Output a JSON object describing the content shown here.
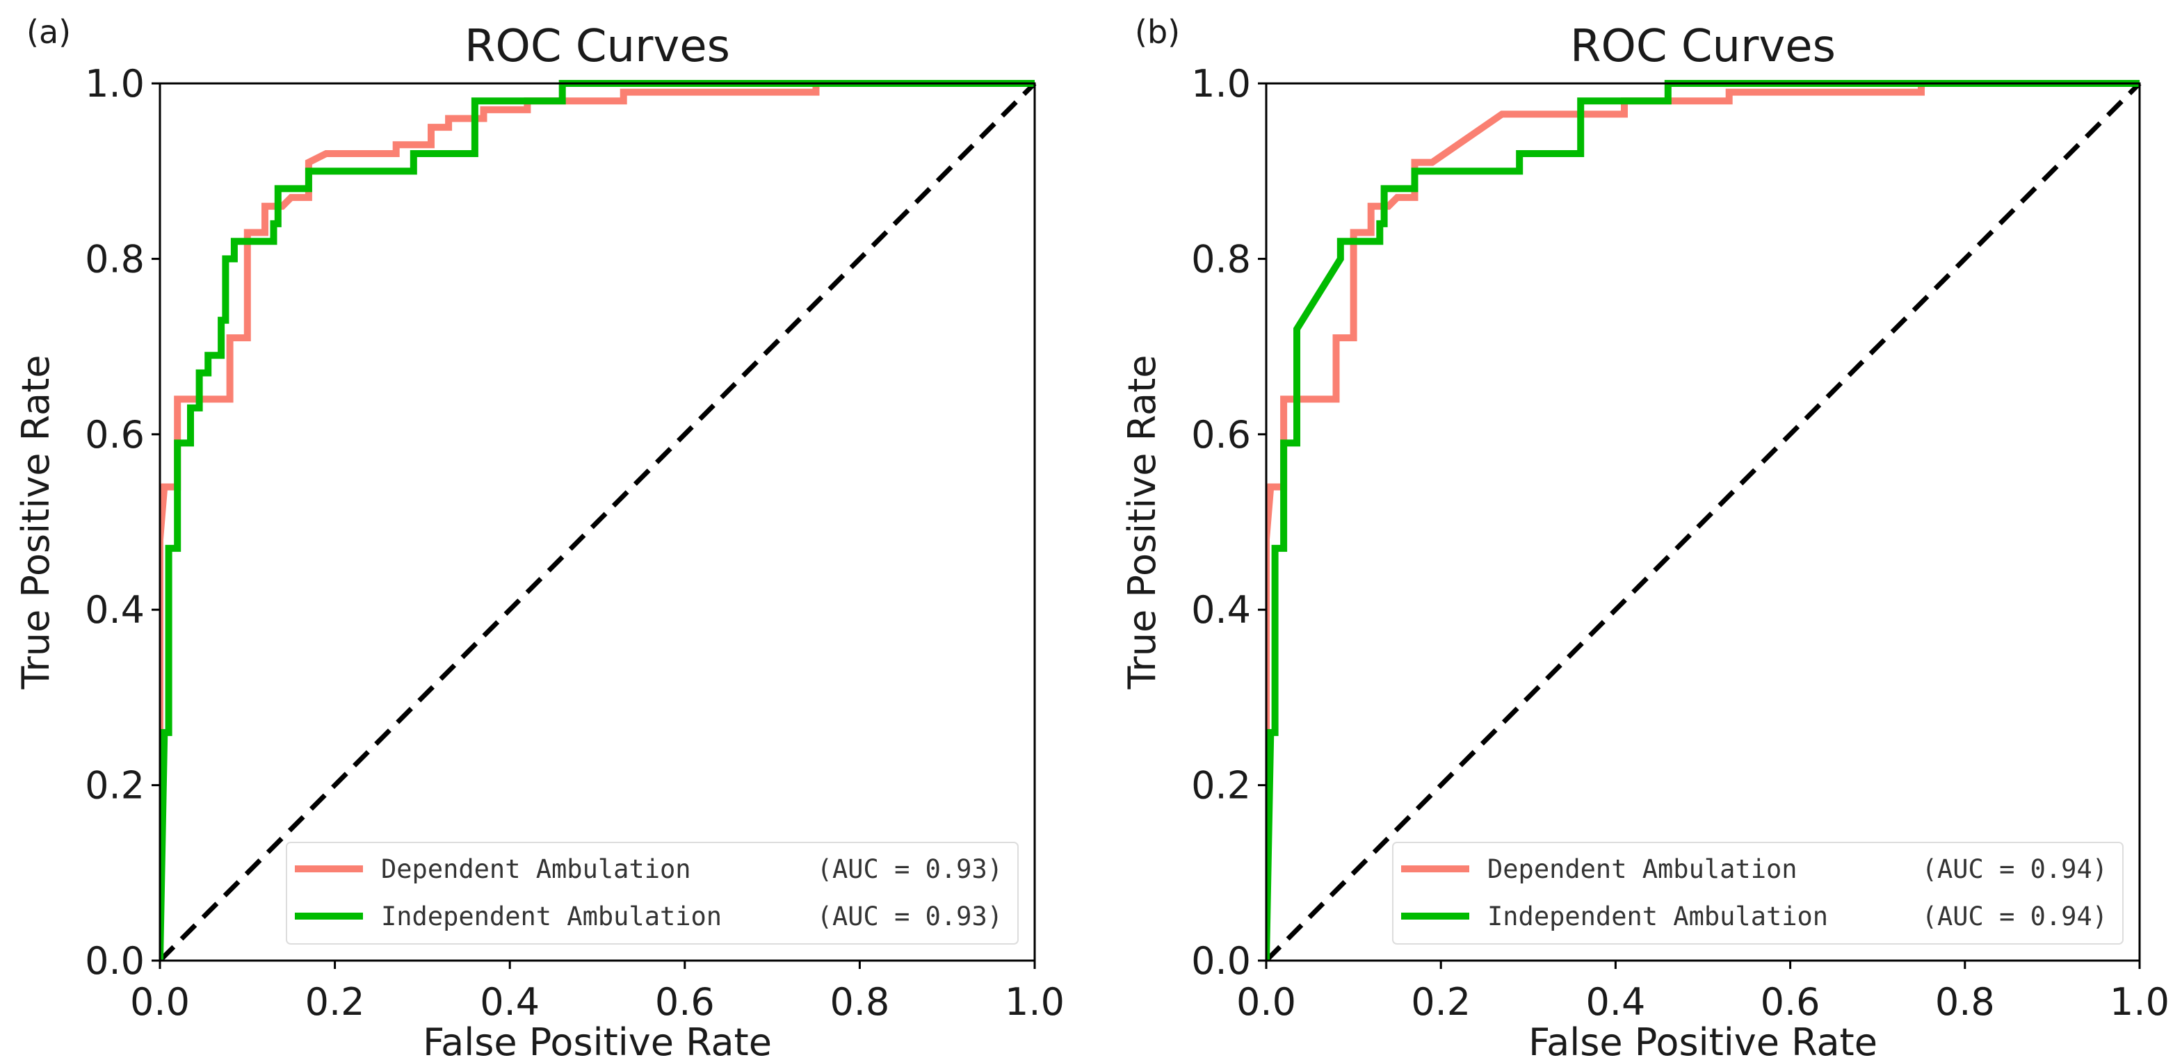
{
  "chart_data": [
    {
      "type": "line",
      "panel_label": "(a)",
      "title": "ROC Curves",
      "xlabel": "False Positive Rate",
      "ylabel": "True Positive Rate",
      "xlim": [
        0,
        1
      ],
      "ylim": [
        0,
        1
      ],
      "xticks": [
        "0.0",
        "0.2",
        "0.4",
        "0.6",
        "0.8",
        "1.0"
      ],
      "yticks": [
        "0.0",
        "0.2",
        "0.4",
        "0.6",
        "0.8",
        "1.0"
      ],
      "grid": false,
      "legend_position": "lower-right",
      "series": [
        {
          "name": "Dependent Ambulation",
          "auc_label": "(AUC = 0.93)",
          "color": "#fa8072",
          "x": [
            0,
            0,
            0.005,
            0.02,
            0.02,
            0.08,
            0.08,
            0.1,
            0.1,
            0.12,
            0.12,
            0.14,
            0.15,
            0.17,
            0.17,
            0.19,
            0.27,
            0.27,
            0.31,
            0.31,
            0.33,
            0.33,
            0.37,
            0.37,
            0.42,
            0.42,
            0.53,
            0.53,
            0.75,
            0.75,
            1
          ],
          "y": [
            0,
            0.48,
            0.54,
            0.54,
            0.64,
            0.64,
            0.71,
            0.71,
            0.83,
            0.83,
            0.86,
            0.86,
            0.87,
            0.87,
            0.91,
            0.92,
            0.92,
            0.93,
            0.93,
            0.95,
            0.95,
            0.96,
            0.96,
            0.97,
            0.97,
            0.98,
            0.98,
            0.99,
            0.99,
            1,
            1
          ]
        },
        {
          "name": "Independent Ambulation",
          "auc_label": "(AUC = 0.93)",
          "color": "#00bb00",
          "x": [
            0,
            0.005,
            0.01,
            0.01,
            0.02,
            0.02,
            0.035,
            0.035,
            0.045,
            0.045,
            0.055,
            0.055,
            0.07,
            0.07,
            0.075,
            0.075,
            0.085,
            0.085,
            0.13,
            0.13,
            0.135,
            0.135,
            0.17,
            0.17,
            0.29,
            0.29,
            0.36,
            0.36,
            0.46,
            0.46,
            1
          ],
          "y": [
            0,
            0.26,
            0.26,
            0.47,
            0.47,
            0.59,
            0.59,
            0.63,
            0.63,
            0.67,
            0.67,
            0.69,
            0.69,
            0.73,
            0.73,
            0.8,
            0.8,
            0.82,
            0.82,
            0.84,
            0.84,
            0.88,
            0.88,
            0.9,
            0.9,
            0.92,
            0.92,
            0.98,
            0.98,
            1,
            1
          ]
        },
        {
          "name": "chance",
          "color": "#000000",
          "dashed": true,
          "x": [
            0,
            1
          ],
          "y": [
            0,
            1
          ]
        }
      ]
    },
    {
      "type": "line",
      "panel_label": "(b)",
      "title": "ROC Curves",
      "xlabel": "False Positive Rate",
      "ylabel": "True Positive Rate",
      "xlim": [
        0,
        1
      ],
      "ylim": [
        0,
        1
      ],
      "xticks": [
        "0.0",
        "0.2",
        "0.4",
        "0.6",
        "0.8",
        "1.0"
      ],
      "yticks": [
        "0.0",
        "0.2",
        "0.4",
        "0.6",
        "0.8",
        "1.0"
      ],
      "grid": false,
      "legend_position": "lower-right",
      "series": [
        {
          "name": "Dependent Ambulation",
          "auc_label": "(AUC = 0.94)",
          "color": "#fa8072",
          "x": [
            0,
            0,
            0.005,
            0.02,
            0.02,
            0.08,
            0.08,
            0.1,
            0.1,
            0.12,
            0.12,
            0.14,
            0.15,
            0.17,
            0.17,
            0.19,
            0.27,
            0.41,
            0.41,
            0.53,
            0.53,
            0.75,
            0.75,
            1
          ],
          "y": [
            0,
            0.48,
            0.54,
            0.54,
            0.64,
            0.64,
            0.71,
            0.71,
            0.83,
            0.83,
            0.86,
            0.86,
            0.87,
            0.87,
            0.91,
            0.91,
            0.965,
            0.965,
            0.98,
            0.98,
            0.99,
            0.99,
            1,
            1
          ]
        },
        {
          "name": "Independent Ambulation",
          "auc_label": "(AUC = 0.94)",
          "color": "#00bb00",
          "x": [
            0,
            0.005,
            0.01,
            0.01,
            0.02,
            0.02,
            0.035,
            0.035,
            0.085,
            0.085,
            0.13,
            0.13,
            0.135,
            0.135,
            0.17,
            0.17,
            0.29,
            0.29,
            0.36,
            0.36,
            0.46,
            0.46,
            1
          ],
          "y": [
            0,
            0.26,
            0.26,
            0.47,
            0.47,
            0.59,
            0.59,
            0.72,
            0.8,
            0.82,
            0.82,
            0.84,
            0.84,
            0.88,
            0.88,
            0.9,
            0.9,
            0.92,
            0.92,
            0.98,
            0.98,
            1,
            1
          ]
        },
        {
          "name": "chance",
          "color": "#000000",
          "dashed": true,
          "x": [
            0,
            1
          ],
          "y": [
            0,
            1
          ]
        }
      ]
    }
  ]
}
